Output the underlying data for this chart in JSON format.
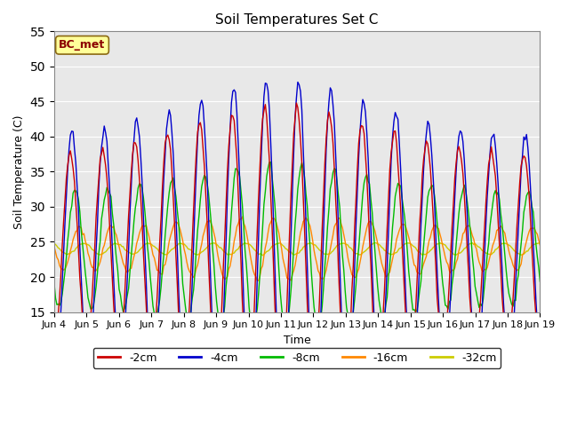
{
  "title": "Soil Temperatures Set C",
  "xlabel": "Time",
  "ylabel": "Soil Temperature (C)",
  "ylim": [
    15,
    55
  ],
  "xlim_days": 15,
  "annotation": "BC_met",
  "x_tick_labels": [
    "Jun 4",
    "Jun 5",
    "Jun 6",
    "Jun 7",
    "Jun 8",
    "Jun 9",
    "Jun 10",
    "Jun 11",
    "Jun 12",
    "Jun 13",
    "Jun 14",
    "Jun 15",
    "Jun 16",
    "Jun 17",
    "Jun 18",
    "Jun 19"
  ],
  "legend_labels": [
    "-2cm",
    "-4cm",
    "-8cm",
    "-16cm",
    "-32cm"
  ],
  "legend_colors": [
    "#cc0000",
    "#0000cc",
    "#00bb00",
    "#ff8800",
    "#cccc00"
  ],
  "bg_color": "#e8e8e8",
  "line_widths": [
    1.2,
    1.2,
    1.2,
    1.2,
    1.2
  ]
}
